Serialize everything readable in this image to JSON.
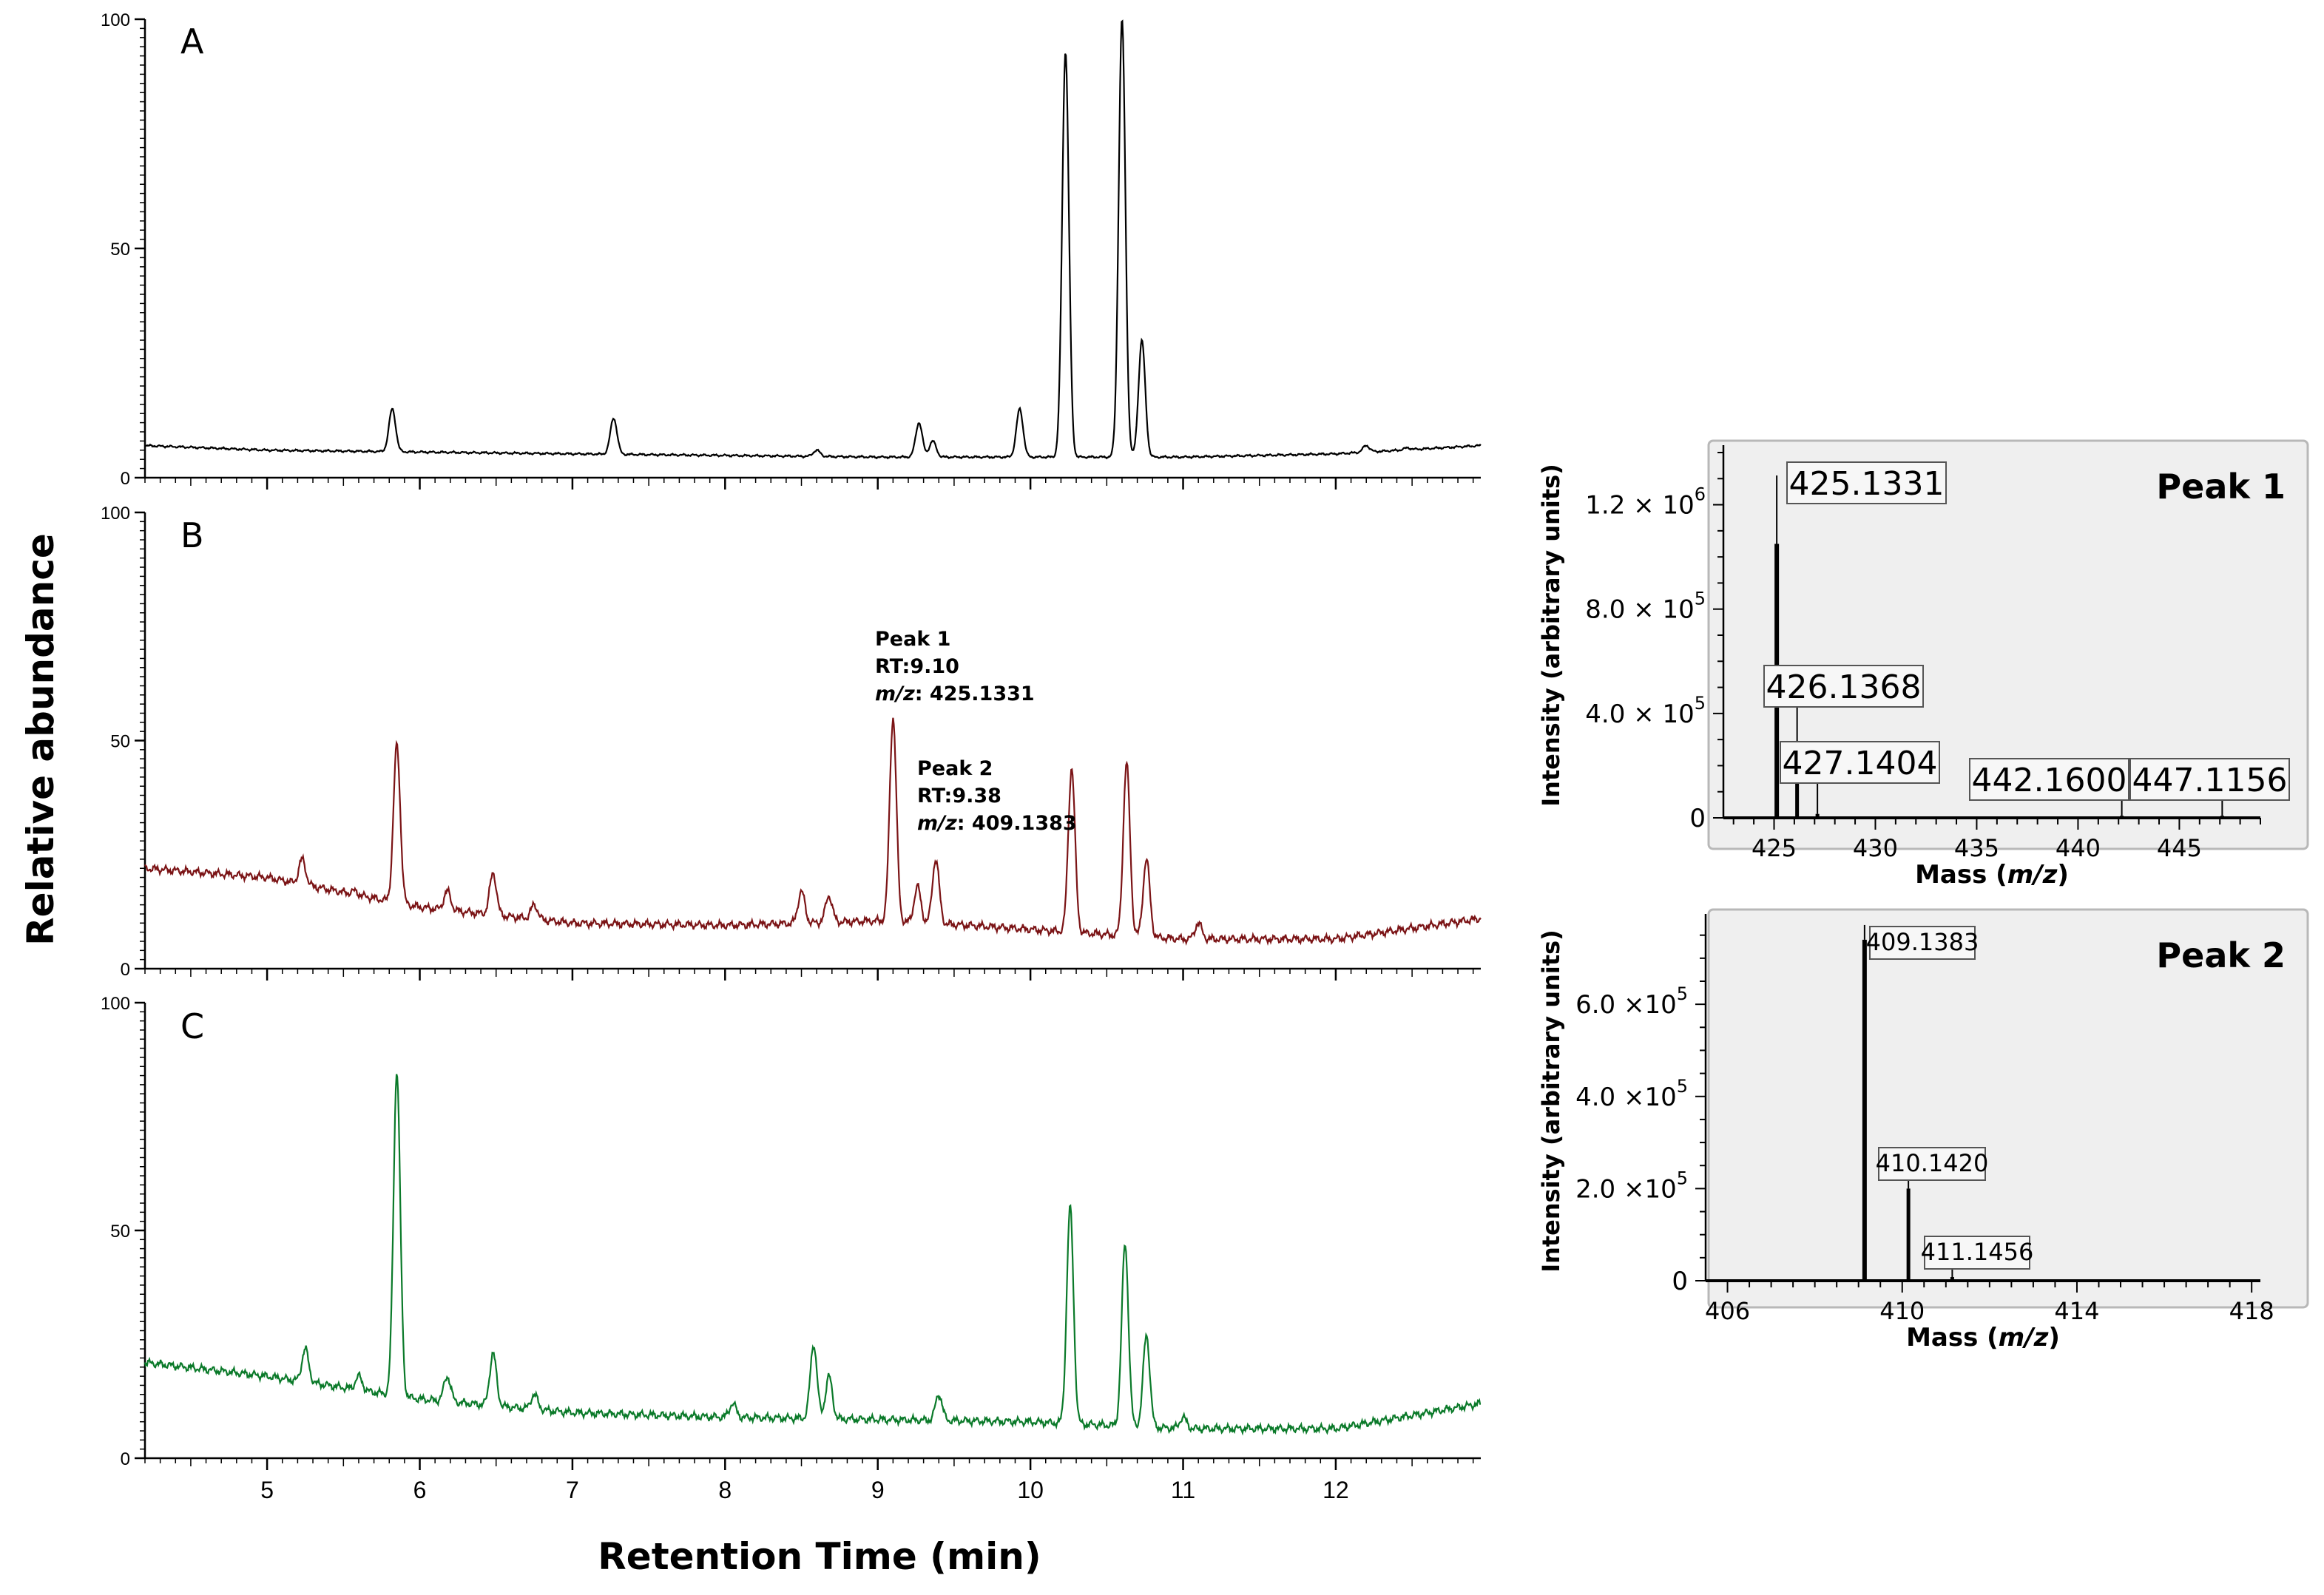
{
  "chart_data": [
    {
      "type": "line",
      "panel": "A",
      "xlabel": "Retention Time (min)",
      "ylabel": "Relative abundance",
      "xlim": [
        4.2,
        12.95
      ],
      "ylim": [
        0,
        100
      ],
      "x_ticks": [
        5,
        6,
        7,
        8,
        9,
        10,
        11,
        12
      ],
      "y_ticks": [
        0,
        50,
        100
      ],
      "color": "#000000",
      "baseline": [
        [
          4.2,
          7
        ],
        [
          5,
          6
        ],
        [
          7,
          5.2
        ],
        [
          9,
          4.5
        ],
        [
          10,
          4.5
        ],
        [
          11,
          4.5
        ],
        [
          12,
          5.2
        ],
        [
          12.95,
          7
        ]
      ],
      "peaks": [
        {
          "rt": 5.82,
          "height": 15
        },
        {
          "rt": 7.27,
          "height": 13
        },
        {
          "rt": 8.6,
          "height": 6
        },
        {
          "rt": 9.27,
          "height": 12
        },
        {
          "rt": 9.36,
          "height": 8
        },
        {
          "rt": 9.93,
          "height": 15
        },
        {
          "rt": 10.23,
          "height": 93
        },
        {
          "rt": 10.6,
          "height": 100
        },
        {
          "rt": 10.73,
          "height": 30
        },
        {
          "rt": 12.2,
          "height": 7
        },
        {
          "rt": 12.47,
          "height": 6.5
        }
      ]
    },
    {
      "type": "line",
      "panel": "B",
      "xlim": [
        4.2,
        12.95
      ],
      "ylim": [
        0,
        100
      ],
      "x_ticks": [
        5,
        6,
        7,
        8,
        9,
        10,
        11,
        12
      ],
      "y_ticks": [
        0,
        50,
        100
      ],
      "color": "#7b1416",
      "baseline": [
        [
          4.2,
          22
        ],
        [
          5,
          20
        ],
        [
          6,
          13.5
        ],
        [
          7,
          10
        ],
        [
          8,
          9.5
        ],
        [
          9,
          10.5
        ],
        [
          9.6,
          9.5
        ],
        [
          10.5,
          7.5
        ],
        [
          11,
          6.5
        ],
        [
          12,
          6.5
        ],
        [
          12.95,
          11
        ]
      ],
      "peaks": [
        {
          "rt": 5.23,
          "height": 24
        },
        {
          "rt": 5.57,
          "height": 17
        },
        {
          "rt": 5.85,
          "height": 49
        },
        {
          "rt": 6.18,
          "height": 17
        },
        {
          "rt": 6.48,
          "height": 21
        },
        {
          "rt": 6.75,
          "height": 14
        },
        {
          "rt": 8.5,
          "height": 17
        },
        {
          "rt": 8.68,
          "height": 16
        },
        {
          "rt": 9.1,
          "height": 55
        },
        {
          "rt": 9.26,
          "height": 18
        },
        {
          "rt": 9.38,
          "height": 24
        },
        {
          "rt": 10.27,
          "height": 44
        },
        {
          "rt": 10.63,
          "height": 45
        },
        {
          "rt": 10.76,
          "height": 24
        },
        {
          "rt": 11.1,
          "height": 10
        }
      ],
      "annotations": [
        {
          "lines": [
            "Peak 1",
            "RT:9.10",
            "m/z: 425.1331"
          ]
        },
        {
          "lines": [
            "Peak 2",
            "RT:9.38",
            "m/z: 409.1383"
          ]
        }
      ]
    },
    {
      "type": "line",
      "panel": "C",
      "xlim": [
        4.2,
        12.95
      ],
      "ylim": [
        0,
        100
      ],
      "x_ticks": [
        5,
        6,
        7,
        8,
        9,
        10,
        11,
        12
      ],
      "y_ticks": [
        0,
        50,
        100
      ],
      "color": "#0b7a2a",
      "baseline": [
        [
          4.2,
          21
        ],
        [
          5,
          18
        ],
        [
          6,
          13
        ],
        [
          7,
          10
        ],
        [
          8,
          9
        ],
        [
          9,
          8.5
        ],
        [
          10,
          8
        ],
        [
          11,
          6.5
        ],
        [
          12,
          6.5
        ],
        [
          12.95,
          12
        ]
      ],
      "peaks": [
        {
          "rt": 5.25,
          "height": 24
        },
        {
          "rt": 5.6,
          "height": 18
        },
        {
          "rt": 5.85,
          "height": 85
        },
        {
          "rt": 6.18,
          "height": 18
        },
        {
          "rt": 6.48,
          "height": 23
        },
        {
          "rt": 6.75,
          "height": 14
        },
        {
          "rt": 8.05,
          "height": 12
        },
        {
          "rt": 8.58,
          "height": 25
        },
        {
          "rt": 8.68,
          "height": 18
        },
        {
          "rt": 9.4,
          "height": 14
        },
        {
          "rt": 10.26,
          "height": 55
        },
        {
          "rt": 10.62,
          "height": 47
        },
        {
          "rt": 10.76,
          "height": 27
        },
        {
          "rt": 11.0,
          "height": 9
        }
      ]
    },
    {
      "type": "bar",
      "title": "Peak 1",
      "xlabel": "Mass (m/z)",
      "ylabel": "Intensity (arbitrary units)",
      "xlim": [
        422.5,
        449
      ],
      "ylim": [
        0,
        1400000
      ],
      "x_ticks": [
        425,
        430,
        435,
        440,
        445
      ],
      "y_ticks": [
        0,
        400000,
        800000,
        1200000
      ],
      "y_tick_labels": [
        {
          "mantissa": "0",
          "exp": ""
        },
        {
          "mantissa": "4.0 × 10",
          "exp": "5"
        },
        {
          "mantissa": "8.0 × 10",
          "exp": "5"
        },
        {
          "mantissa": "1.2 × 10",
          "exp": "6"
        }
      ],
      "sticks": [
        {
          "mz": 425.1331,
          "intensity": 1050000,
          "label": "425.1331"
        },
        {
          "mz": 426.1368,
          "intensity": 190000,
          "label": "426.1368"
        },
        {
          "mz": 427.1404,
          "intensity": 15000,
          "label": "427.1404"
        },
        {
          "mz": 442.16,
          "intensity": 8000,
          "label": "442.1600"
        },
        {
          "mz": 447.1156,
          "intensity": 8000,
          "label": "447.1156"
        }
      ]
    },
    {
      "type": "bar",
      "title": "Peak 2",
      "xlabel": "Mass (m/z)",
      "ylabel": "Intensity (arbitrary units)",
      "xlim": [
        405.5,
        418.2
      ],
      "ylim": [
        0,
        780000
      ],
      "x_ticks": [
        406,
        410,
        414,
        418
      ],
      "y_ticks": [
        0,
        200000,
        400000,
        600000
      ],
      "y_tick_labels": [
        {
          "mantissa": "0",
          "exp": ""
        },
        {
          "mantissa": "2.0 ×10",
          "exp": "5"
        },
        {
          "mantissa": "4.0 ×10",
          "exp": "5"
        },
        {
          "mantissa": "6.0 ×10",
          "exp": "5"
        }
      ],
      "sticks": [
        {
          "mz": 409.1383,
          "intensity": 740000,
          "label": "409.1383"
        },
        {
          "mz": 410.142,
          "intensity": 200000,
          "label": "410.1420"
        },
        {
          "mz": 411.1456,
          "intensity": 8000,
          "label": "411.1456"
        }
      ]
    }
  ]
}
